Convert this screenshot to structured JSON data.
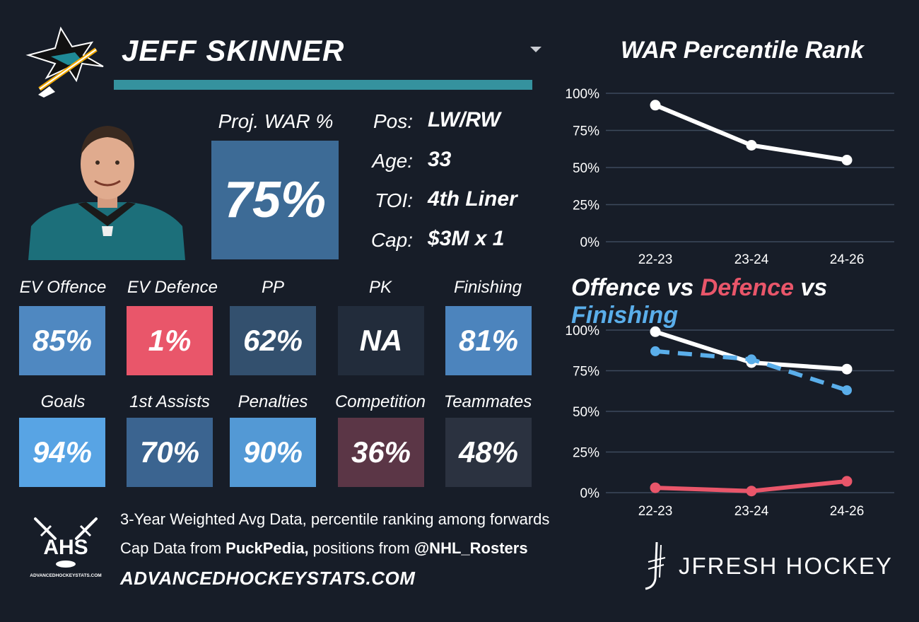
{
  "player": {
    "name": "JEFF SKINNER",
    "team_logo_icon": "sharks-logo-icon",
    "headshot_icon": "player-headshot-icon"
  },
  "projection": {
    "label": "Proj. WAR %",
    "value": "75%"
  },
  "info": [
    {
      "label": "Pos:",
      "value": "LW/RW"
    },
    {
      "label": "Age:",
      "value": "33"
    },
    {
      "label": "TOI:",
      "value": "4th Liner"
    },
    {
      "label": "Cap:",
      "value": "$3M x 1"
    }
  ],
  "stats_row1": [
    {
      "label": "EV Offence",
      "value": "85%",
      "color": "#4f88c1"
    },
    {
      "label": "EV Defence",
      "value": "1%",
      "color": "#e9566a"
    },
    {
      "label": "PP",
      "value": "62%",
      "color": "#33506e"
    },
    {
      "label": "PK",
      "value": "NA",
      "color": "#222c3b"
    },
    {
      "label": "Finishing",
      "value": "81%",
      "color": "#4c84bd"
    }
  ],
  "stats_row2": [
    {
      "label": "Goals",
      "value": "94%",
      "color": "#58a4e4"
    },
    {
      "label": "1st Assists",
      "value": "70%",
      "color": "#3b6490"
    },
    {
      "label": "Penalties",
      "value": "90%",
      "color": "#5399d5"
    },
    {
      "label": "Competition",
      "value": "36%",
      "color": "#5b3646"
    },
    {
      "label": "Teammates",
      "value": "48%",
      "color": "#2b3240"
    }
  ],
  "footer": {
    "line1": "3-Year Weighted Avg Data, percentile ranking among forwards",
    "line2_a": "Cap Data from ",
    "line2_b": "PuckPedia,",
    "line2_c": " positions from ",
    "line2_d": "@NHL_Rosters",
    "site": "ADVANCEDHOCKEYSTATS.COM",
    "ahs_logo_text": "AHS",
    "ahs_logo_small": "ADVANCEDHOCKEYSTATS.COM",
    "brand": "JFRESH HOCKEY"
  },
  "chart_data": [
    {
      "type": "line",
      "title": "WAR Percentile Rank",
      "categories": [
        "22-23",
        "23-24",
        "24-26"
      ],
      "y_ticks": [
        "0%",
        "25%",
        "50%",
        "75%",
        "100%"
      ],
      "ylim": [
        0,
        100
      ],
      "grid": true,
      "series": [
        {
          "values": [
            92,
            65,
            55
          ],
          "color": "#ffffff",
          "dashed": false
        }
      ]
    },
    {
      "type": "line",
      "title_parts": [
        "Offence",
        " vs ",
        "Defence",
        " vs ",
        "Finishing"
      ],
      "categories": [
        "22-23",
        "23-24",
        "24-26"
      ],
      "y_ticks": [
        "0%",
        "25%",
        "50%",
        "75%",
        "100%"
      ],
      "ylim": [
        0,
        100
      ],
      "grid": true,
      "series": [
        {
          "name": "Offence",
          "values": [
            99,
            80,
            76
          ],
          "color": "#ffffff",
          "dashed": false
        },
        {
          "name": "Defence",
          "values": [
            3,
            1,
            7
          ],
          "color": "#e9566a",
          "dashed": false
        },
        {
          "name": "Finishing",
          "values": [
            87,
            82,
            63
          ],
          "color": "#5aaeea",
          "dashed": true
        }
      ]
    }
  ]
}
